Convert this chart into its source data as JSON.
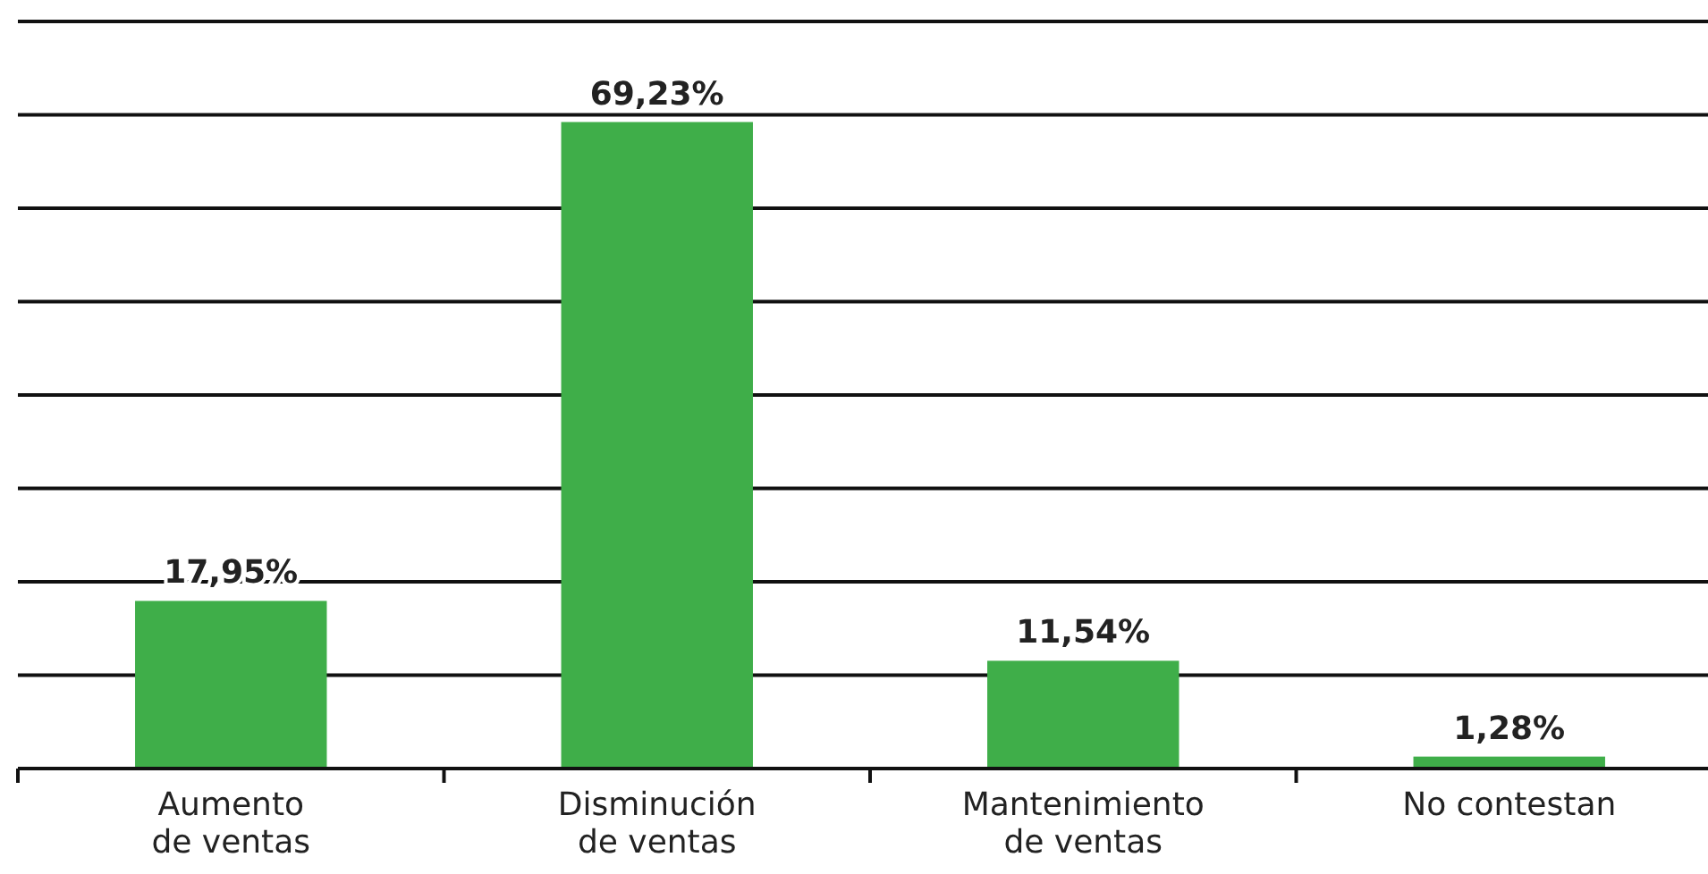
{
  "chart_data": {
    "type": "bar",
    "categories": [
      "Aumento\nde ventas",
      "Disminución\nde ventas",
      "Mantenimiento\nde ventas",
      "No contestan"
    ],
    "values": [
      17.95,
      69.23,
      11.54,
      1.28
    ],
    "value_labels": [
      "17,95%",
      "69,23%",
      "11,54%",
      "1,28%"
    ],
    "color": "#3fae49",
    "ylim": [
      0,
      80
    ],
    "yticks": [
      {
        "value": 10,
        "label": null
      },
      {
        "value": 20,
        "label": null
      },
      {
        "value": 30,
        "label": null
      },
      {
        "value": 40,
        "label": null
      },
      {
        "value": 50,
        "label": null
      },
      {
        "value": 60,
        "label": null
      },
      {
        "value": 70,
        "label": null
      },
      {
        "value": 80,
        "label": null
      }
    ],
    "grid": "y",
    "tick_labels": "x"
  }
}
